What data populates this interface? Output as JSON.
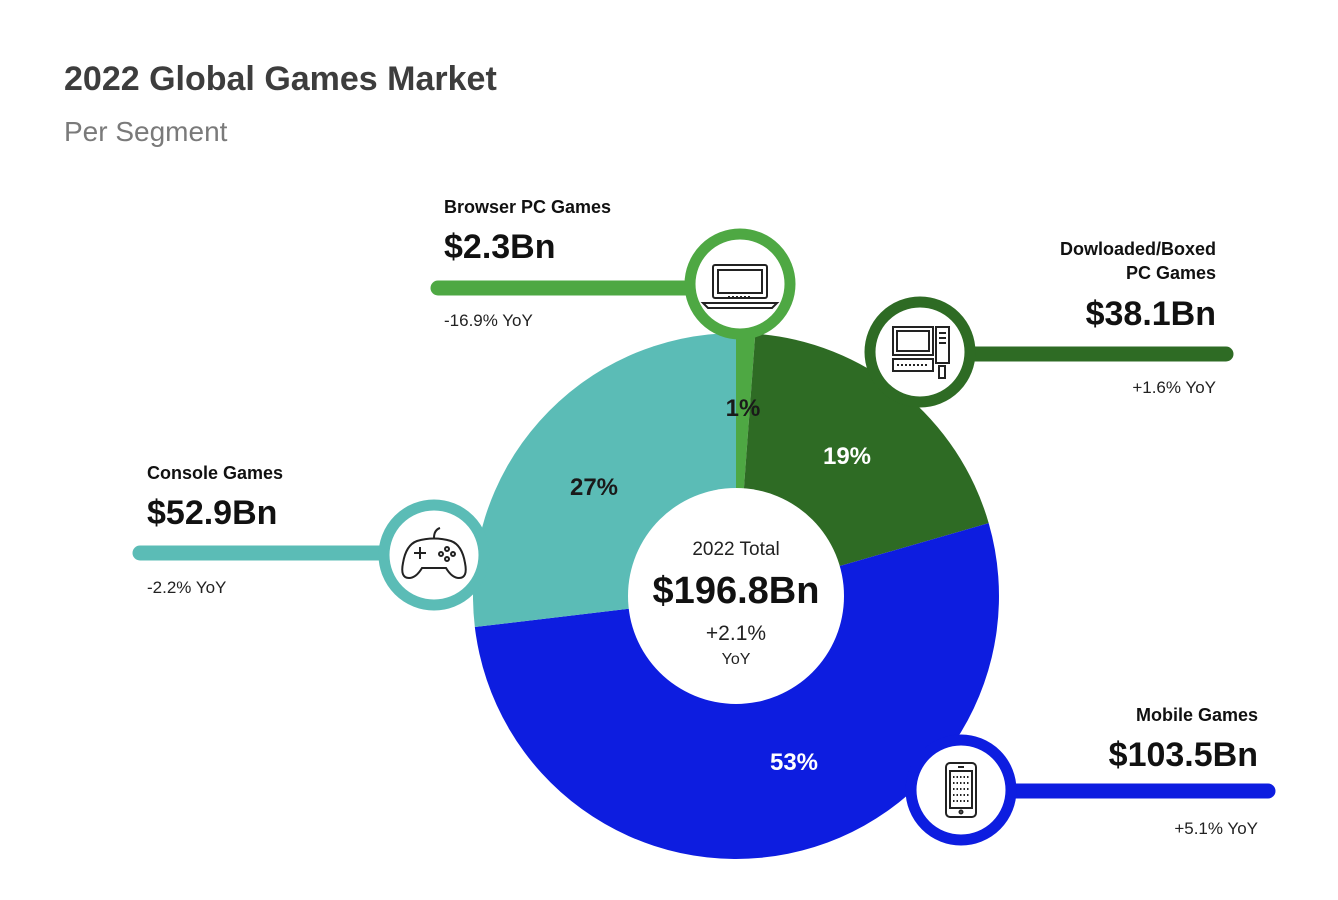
{
  "header": {
    "title": "2022 Global Games Market",
    "subtitle": "Per Segment"
  },
  "chart_data": {
    "type": "pie",
    "title": "2022 Global Games Market",
    "subtitle": "Per Segment",
    "unit": "$Bn",
    "total": {
      "caption": "2022 Total",
      "value_label": "$196.8Bn",
      "yoy_label": "+2.1%",
      "yoy_suffix": "YoY",
      "value": 196.8,
      "yoy": 2.1
    },
    "segments": [
      {
        "key": "browser",
        "name": "Browser PC Games",
        "value": 2.3,
        "value_label": "$2.3Bn",
        "yoy": -16.9,
        "yoy_label": "-16.9% YoY",
        "share": 1,
        "share_label": "1%",
        "color": "#4ea843",
        "icon": "laptop-icon"
      },
      {
        "key": "downloaded",
        "name_lines": [
          "Dowloaded/Boxed",
          "PC Games"
        ],
        "value": 38.1,
        "value_label": "$38.1Bn",
        "yoy": 1.6,
        "yoy_label": "+1.6% YoY",
        "share": 19,
        "share_label": "19%",
        "color": "#2e6b24",
        "icon": "desktop-computer-icon"
      },
      {
        "key": "mobile",
        "name": "Mobile Games",
        "value": 103.5,
        "value_label": "$103.5Bn",
        "yoy": 5.1,
        "yoy_label": "+5.1% YoY",
        "share": 53,
        "share_label": "53%",
        "color": "#0d1de0",
        "icon": "smartphone-icon"
      },
      {
        "key": "console",
        "name": "Console Games",
        "value": 52.9,
        "value_label": "$52.9Bn",
        "yoy": -2.2,
        "yoy_label": "-2.2% YoY",
        "share": 27,
        "share_label": "27%",
        "color": "#5bbcb6",
        "icon": "gamepad-icon"
      }
    ],
    "legend": "none",
    "grid": false
  }
}
